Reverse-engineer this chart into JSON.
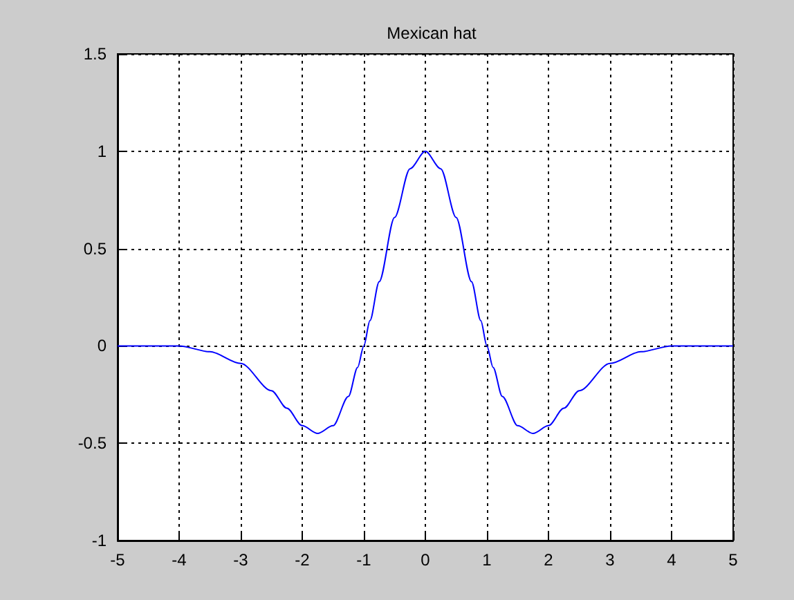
{
  "chart_data": {
    "type": "line",
    "title": "Mexican hat",
    "x": [
      -5,
      -4.5,
      -4,
      -3.5,
      -3,
      -2.5,
      -2.25,
      -2,
      -1.75,
      -1.5,
      -1.25,
      -1.1,
      -1,
      -0.9,
      -0.75,
      -0.5,
      -0.25,
      0,
      0.25,
      0.5,
      0.75,
      0.9,
      1,
      1.1,
      1.25,
      1.5,
      1.75,
      2,
      2.25,
      2.5,
      3,
      3.5,
      4,
      4.5,
      5
    ],
    "series": [
      {
        "color": "#0000ff",
        "values": [
          0,
          0,
          0,
          -0.03,
          -0.09,
          -0.23,
          -0.32,
          -0.41,
          -0.45,
          -0.41,
          -0.26,
          -0.11,
          0,
          0.13,
          0.33,
          0.66,
          0.91,
          1,
          0.91,
          0.66,
          0.33,
          0.13,
          0,
          -0.11,
          -0.26,
          -0.41,
          -0.45,
          -0.41,
          -0.32,
          -0.23,
          -0.09,
          -0.03,
          0,
          0,
          0
        ]
      }
    ],
    "xlim": [
      -5,
      5
    ],
    "xticks": [
      -5,
      -4,
      -3,
      -2,
      -1,
      0,
      1,
      2,
      3,
      4,
      5
    ],
    "ylim": [
      -1,
      1.5
    ],
    "yticks": [
      -1,
      -0.5,
      0,
      0.5,
      1,
      1.5
    ],
    "grid": true,
    "marker": "none",
    "line_style": "solid"
  }
}
